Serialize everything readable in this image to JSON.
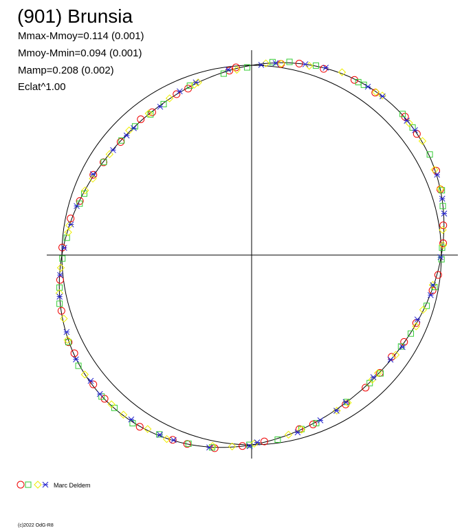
{
  "title": "(901) Brunsia",
  "stats": [
    "Mmax-Mmoy=0.114 (0.001)",
    "Mmoy-Mmin=0.094 (0.001)",
    "Mamp=0.208 (0.002)",
    "Eclat^1.00"
  ],
  "legend": {
    "label": "Marc Deldem"
  },
  "footer": "(c)2022 OdG-R8"
}
